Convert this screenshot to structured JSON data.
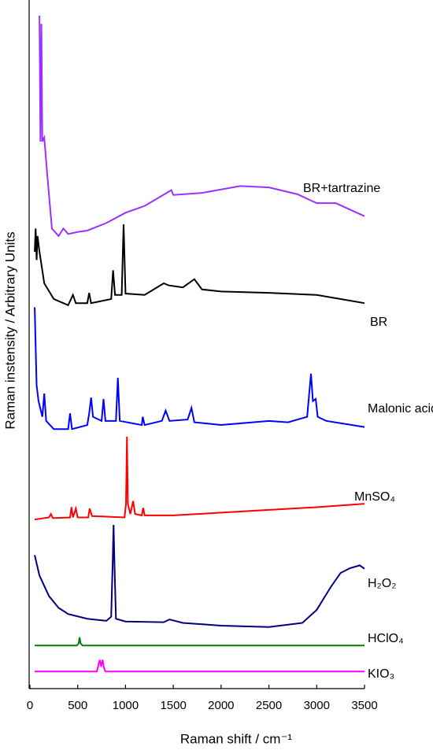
{
  "chart_data": {
    "type": "line",
    "xlabel": "Raman shift / cm⁻¹",
    "ylabel": "Raman instensity / Arbitrary Units",
    "xlim": [
      0,
      3500
    ],
    "xticks": [
      0,
      500,
      1000,
      1500,
      2000,
      2500,
      3000,
      3500
    ],
    "ylim": [
      0,
      100
    ],
    "series": [
      {
        "name": "BR+tartrazine",
        "color": "#9b30ff",
        "x": [
          100,
          110,
          120,
          130,
          150,
          180,
          230,
          300,
          350,
          400,
          500,
          600,
          800,
          1000,
          1200,
          1480,
          1500,
          1800,
          2200,
          2500,
          2800,
          3000,
          3200,
          3500
        ],
        "values": [
          98.3,
          79.9,
          97.1,
          79.9,
          80.5,
          75.3,
          67.2,
          66.1,
          67.2,
          66.4,
          66.7,
          66.9,
          68.0,
          69.5,
          70.5,
          72.8,
          72.1,
          72.4,
          73.4,
          73.2,
          72.2,
          70.9,
          70.9,
          69.0
        ]
      },
      {
        "name": "BR",
        "color": "#000000",
        "x": [
          50,
          60,
          70,
          80,
          100,
          150,
          250,
          400,
          450,
          480,
          600,
          620,
          640,
          850,
          870,
          890,
          960,
          980,
          1000,
          1200,
          1400,
          1450,
          1600,
          1720,
          1800,
          2000,
          2500,
          3000,
          3500
        ],
        "values": [
          63.8,
          67.2,
          62.6,
          66.1,
          63.8,
          59.2,
          56.9,
          56.0,
          57.5,
          56.3,
          56.3,
          57.8,
          56.3,
          56.9,
          61.1,
          57.5,
          57.5,
          67.8,
          57.7,
          57.5,
          59.2,
          58.9,
          58.6,
          59.8,
          58.3,
          58.0,
          57.8,
          57.5,
          56.3
        ]
      },
      {
        "name": "Malonic acid",
        "color": "#0000ff",
        "x": [
          50,
          70,
          90,
          130,
          150,
          170,
          250,
          400,
          420,
          440,
          600,
          620,
          640,
          660,
          750,
          770,
          790,
          900,
          920,
          940,
          1170,
          1180,
          1200,
          1380,
          1420,
          1460,
          1650,
          1690,
          1720,
          2000,
          2500,
          2700,
          2900,
          2940,
          2960,
          2990,
          3010,
          3100,
          3500
        ],
        "values": [
          55.7,
          44.3,
          42.0,
          39.7,
          43.1,
          39.1,
          37.9,
          37.9,
          40.2,
          37.9,
          38.5,
          40.2,
          42.5,
          39.7,
          39.1,
          42.3,
          39.1,
          39.1,
          45.4,
          39.1,
          38.5,
          39.7,
          38.5,
          39.1,
          40.6,
          39.1,
          39.3,
          41.0,
          38.9,
          38.5,
          39.1,
          38.9,
          39.7,
          46.0,
          42.0,
          42.3,
          39.7,
          39.1,
          38.2
        ]
      },
      {
        "name": "MnSO₄",
        "color": "#ff0000",
        "x": [
          50,
          200,
          220,
          240,
          420,
          435,
          450,
          480,
          500,
          610,
          625,
          650,
          990,
          1005,
          1015,
          1025,
          1050,
          1080,
          1100,
          1170,
          1185,
          1200,
          1500,
          2000,
          2500,
          3000,
          3500
        ],
        "values": [
          24.7,
          25.0,
          25.5,
          24.9,
          25.0,
          26.5,
          25.0,
          26.3,
          25.0,
          25.0,
          26.3,
          25.2,
          25.0,
          27,
          36.8,
          27,
          25.5,
          27.4,
          25.5,
          25.3,
          26.4,
          25.3,
          25.3,
          25.7,
          26.1,
          26.5,
          27.0
        ]
      },
      {
        "name": "H₂O₂",
        "color": "#000080",
        "x": [
          50,
          100,
          200,
          300,
          400,
          600,
          800,
          850,
          865,
          875,
          885,
          900,
          1000,
          1400,
          1460,
          1600,
          2000,
          2500,
          2850,
          3000,
          3150,
          3250,
          3350,
          3450,
          3500
        ],
        "values": [
          19.5,
          16.5,
          13.5,
          11.8,
          10.9,
          10.2,
          9.9,
          10.5,
          18,
          23.9,
          18,
          10.2,
          9.8,
          9.7,
          10.1,
          9.6,
          9.2,
          9.0,
          9.6,
          11.5,
          14.9,
          16.9,
          17.6,
          18,
          17.5
        ]
      },
      {
        "name": "HClO₄",
        "color": "#008000",
        "x": [
          50,
          490,
          510,
          520,
          530,
          550,
          3500
        ],
        "values": [
          6.3,
          6.3,
          6.6,
          7.5,
          6.6,
          6.3,
          6.3
        ]
      },
      {
        "name": "KIO₃",
        "color": "#ff00ff",
        "x": [
          50,
          700,
          730,
          745,
          760,
          775,
          790,
          3500
        ],
        "values": [
          2.5,
          2.5,
          4.2,
          3.2,
          4.2,
          3.0,
          2.5,
          2.5
        ]
      }
    ]
  }
}
